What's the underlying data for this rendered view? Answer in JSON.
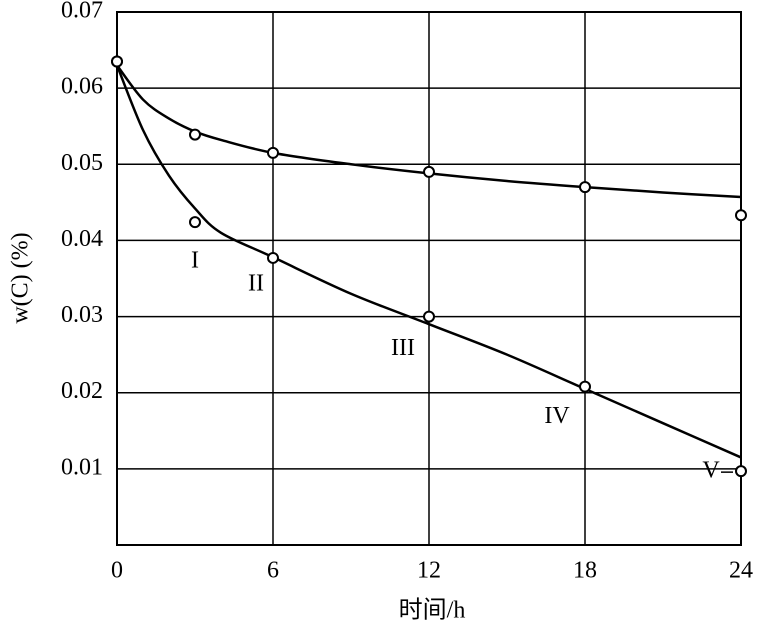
{
  "chart_data": {
    "type": "scatter",
    "x_label": "时间/h",
    "y_label": "w(C) (%)",
    "xlim": [
      0,
      24
    ],
    "xticks": [
      0,
      6,
      12,
      18,
      24
    ],
    "ylim": [
      0,
      0.07
    ],
    "yticks": [
      0.01,
      0.02,
      0.03,
      0.04,
      0.05,
      0.06,
      0.07
    ],
    "grid": true,
    "series": [
      {
        "color": "#000000",
        "x": [
          0,
          3,
          6,
          12,
          18,
          24
        ],
        "values": [
          0.0635,
          0.0539,
          0.0515,
          0.049,
          0.047,
          0.0433
        ]
      },
      {
        "color": "#000000",
        "x": [
          0,
          3,
          6,
          12,
          18,
          24
        ],
        "values": [
          0.0635,
          0.0424,
          0.0377,
          0.03,
          0.0208,
          0.0097
        ],
        "point_labels": [
          null,
          "I",
          "II",
          "III",
          "IV",
          "V"
        ]
      }
    ],
    "curves": [
      {
        "color": "#000000",
        "x": [
          0,
          1,
          2,
          3,
          4,
          6,
          9,
          12,
          15,
          18,
          21,
          24
        ],
        "values": [
          0.063,
          0.0585,
          0.056,
          0.0543,
          0.0532,
          0.0515,
          0.05,
          0.0488,
          0.0478,
          0.047,
          0.0463,
          0.0457
        ]
      },
      {
        "color": "#000000",
        "x": [
          0,
          1,
          2,
          3,
          4,
          6,
          9,
          12,
          15,
          18,
          21,
          24
        ],
        "values": [
          0.063,
          0.0545,
          0.0485,
          0.0442,
          0.041,
          0.0378,
          0.033,
          0.029,
          0.025,
          0.0205,
          0.016,
          0.0115
        ]
      }
    ]
  }
}
